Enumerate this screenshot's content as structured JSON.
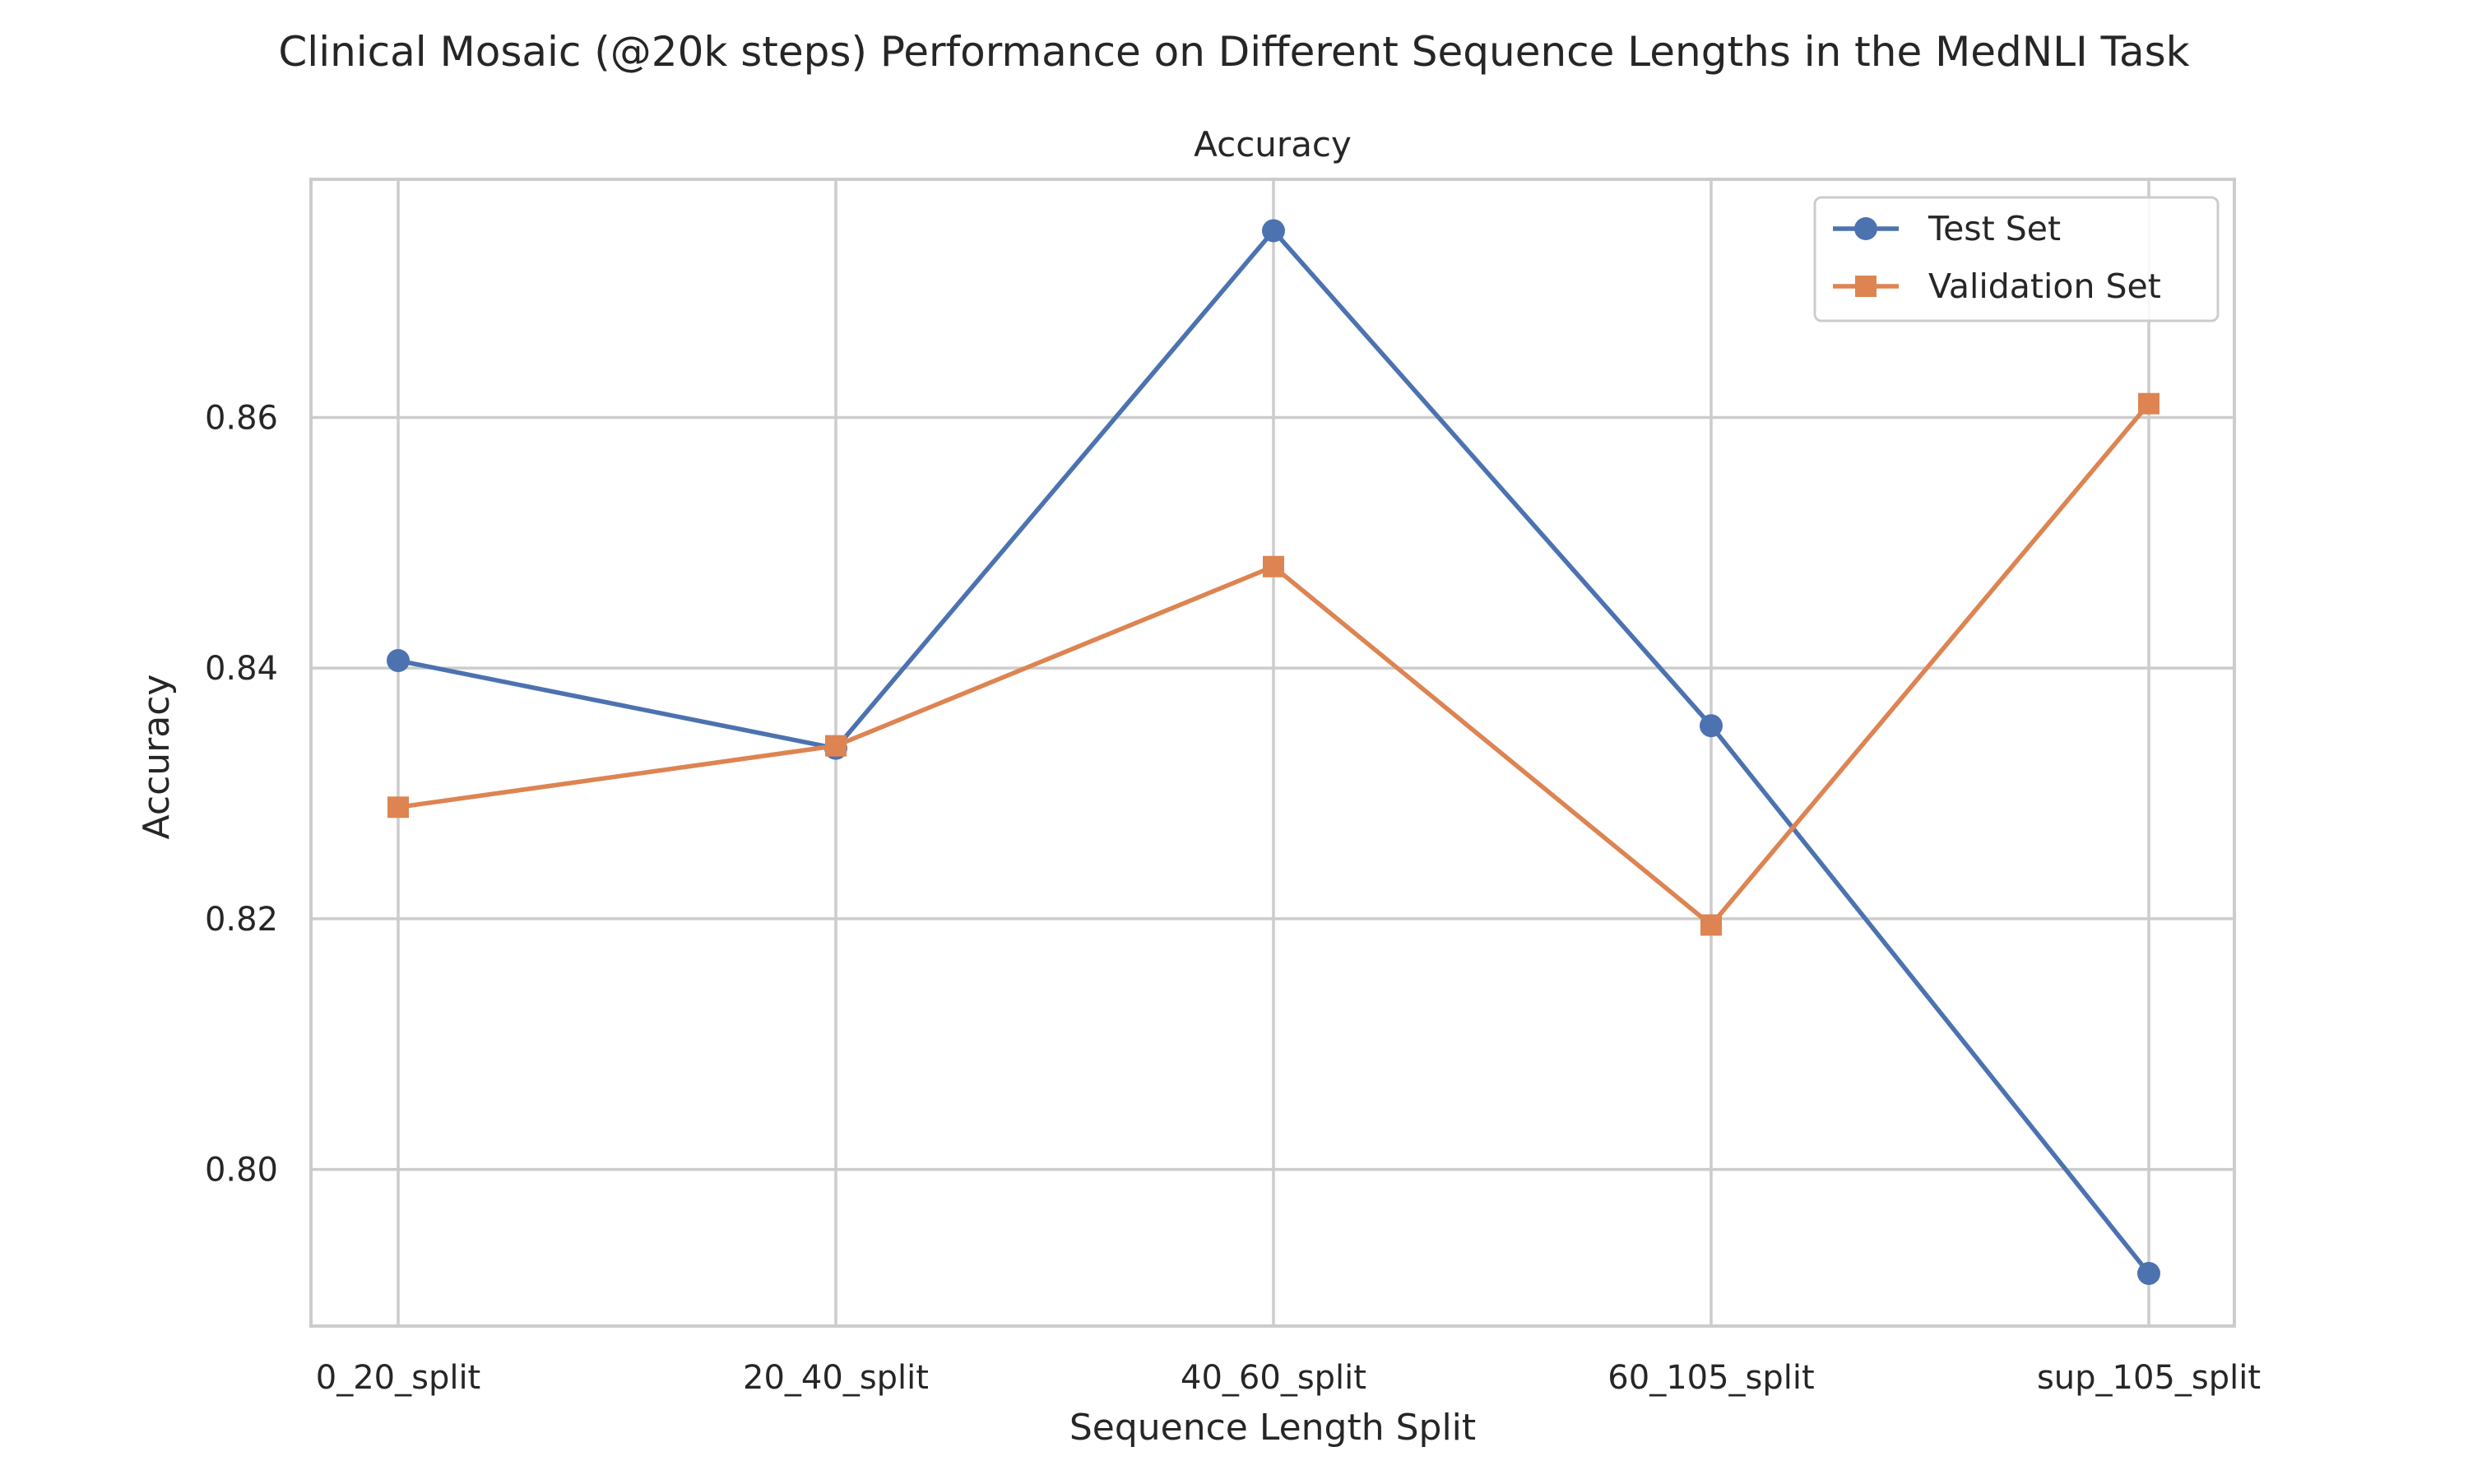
{
  "chart_data": {
    "type": "line",
    "suptitle": "Clinical Mosaic (@20k steps) Performance on Different Sequence Lengths in the MedNLI Task",
    "title": "Accuracy",
    "xlabel": "Sequence Length Split",
    "ylabel": "Accuracy",
    "categories": [
      "0_20_split",
      "20_40_split",
      "40_60_split",
      "60_105_split",
      "sup_105_split"
    ],
    "ylim": [
      0.7875,
      0.879
    ],
    "yticks": [
      0.8,
      0.82,
      0.84,
      0.86
    ],
    "ytick_labels": [
      "0.80",
      "0.82",
      "0.84",
      "0.86"
    ],
    "grid": true,
    "legend_position": "upper right",
    "series": [
      {
        "name": "Test Set",
        "marker": "circle",
        "color": "#4c72b0",
        "values": [
          0.8406,
          0.8336,
          0.8749,
          0.8354,
          0.7917
        ]
      },
      {
        "name": "Validation Set",
        "marker": "square",
        "color": "#dd8452",
        "values": [
          0.8289,
          0.8338,
          0.8481,
          0.8195,
          0.8611
        ]
      }
    ]
  }
}
